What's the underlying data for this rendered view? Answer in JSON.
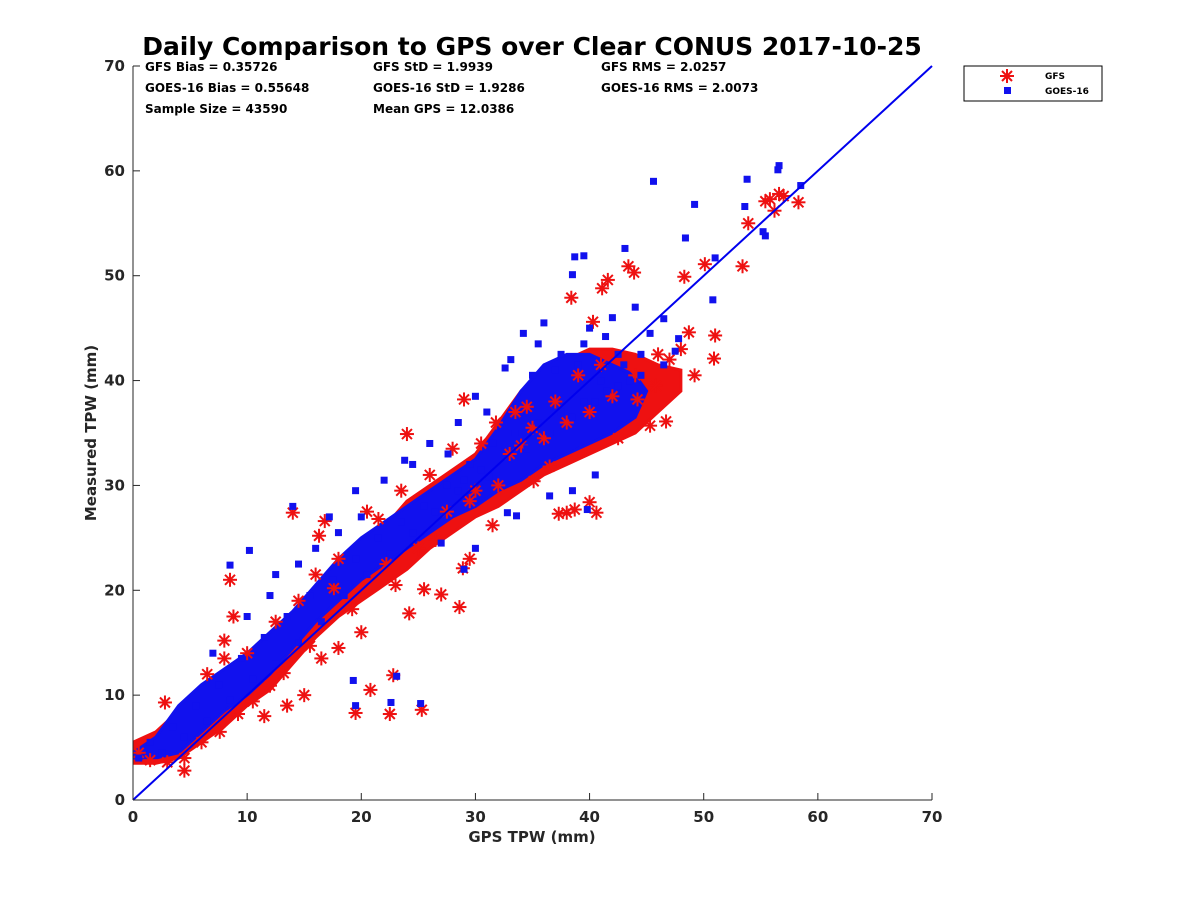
{
  "chart_data": {
    "type": "scatter",
    "title": "Daily Comparison to GPS over Clear CONUS 2017-10-25",
    "xlabel": "GPS TPW (mm)",
    "ylabel": "Measured TPW (mm)",
    "xlim": [
      0,
      70
    ],
    "ylim": [
      0,
      70
    ],
    "xticks": [
      "0",
      "10",
      "20",
      "30",
      "40",
      "50",
      "60",
      "70"
    ],
    "yticks": [
      "0",
      "10",
      "20",
      "30",
      "40",
      "50",
      "60",
      "70"
    ],
    "grid": false,
    "legend_position": "outside-top-right",
    "stats": [
      [
        "GFS Bias = 0.35726",
        "GFS StD = 1.9939",
        "GFS RMS = 2.0257"
      ],
      [
        "GOES-16 Bias = 0.55648",
        "GOES-16 StD = 1.9286",
        "GOES-16 RMS = 2.0073"
      ],
      [
        "Sample Size = 43590",
        "Mean GPS = 12.0386",
        ""
      ]
    ],
    "reference_line": {
      "name": "1:1",
      "x": [
        0,
        70
      ],
      "y": [
        0,
        70
      ],
      "color": "#0000ee"
    },
    "series": [
      {
        "name": "GFS",
        "marker": "asterisk",
        "color": "#ee1111",
        "points": [
          [
            2.8,
            9.3
          ],
          [
            4.5,
            2.8
          ],
          [
            8.0,
            15.2
          ],
          [
            8.5,
            21.0
          ],
          [
            8.8,
            17.5
          ],
          [
            14.0,
            27.4
          ],
          [
            16.8,
            26.6
          ],
          [
            16.3,
            25.2
          ],
          [
            19.5,
            8.3
          ],
          [
            22.5,
            8.2
          ],
          [
            22.8,
            11.9
          ],
          [
            25.3,
            8.6
          ],
          [
            20.8,
            10.5
          ],
          [
            24.0,
            34.9
          ],
          [
            24.2,
            17.8
          ],
          [
            27.0,
            19.6
          ],
          [
            28.6,
            18.4
          ],
          [
            29.0,
            38.2
          ],
          [
            29.5,
            23.0
          ],
          [
            28.9,
            22.1
          ],
          [
            34.5,
            37.5
          ],
          [
            37.3,
            27.3
          ],
          [
            38.0,
            27.4
          ],
          [
            38.7,
            27.7
          ],
          [
            40.0,
            28.4
          ],
          [
            40.6,
            27.4
          ],
          [
            38.4,
            47.9
          ],
          [
            40.3,
            45.6
          ],
          [
            41.1,
            48.8
          ],
          [
            41.6,
            49.6
          ],
          [
            43.4,
            50.9
          ],
          [
            43.9,
            50.3
          ],
          [
            48.3,
            49.9
          ],
          [
            48.7,
            44.6
          ],
          [
            49.2,
            40.5
          ],
          [
            50.1,
            51.1
          ],
          [
            51.0,
            44.3
          ],
          [
            50.9,
            42.1
          ],
          [
            53.4,
            50.9
          ],
          [
            53.9,
            55.0
          ],
          [
            55.4,
            57.1
          ],
          [
            55.8,
            57.3
          ],
          [
            56.2,
            56.2
          ],
          [
            56.6,
            57.8
          ],
          [
            57.0,
            57.6
          ],
          [
            58.3,
            57.0
          ],
          [
            45.3,
            35.7
          ],
          [
            46.7,
            36.1
          ],
          [
            42.5,
            34.5
          ],
          [
            44.2,
            38.2
          ],
          [
            45.8,
            39.5
          ],
          [
            47.0,
            42.0
          ],
          [
            33.0,
            33.0
          ],
          [
            35.1,
            30.4
          ],
          [
            36.5,
            31.8
          ],
          [
            31.5,
            26.2
          ],
          [
            30.0,
            29.5
          ],
          [
            26.5,
            24.8
          ],
          [
            25.5,
            20.1
          ],
          [
            22.2,
            22.5
          ],
          [
            21.5,
            26.8
          ],
          [
            19.2,
            18.2
          ],
          [
            17.6,
            20.2
          ],
          [
            15.5,
            14.7
          ],
          [
            13.2,
            12.1
          ],
          [
            12.0,
            10.9
          ],
          [
            10.5,
            9.4
          ],
          [
            9.2,
            8.2
          ],
          [
            7.6,
            6.5
          ],
          [
            6.0,
            5.5
          ],
          [
            4.5,
            4.0
          ],
          [
            3.0,
            3.6
          ],
          [
            1.5,
            3.8
          ],
          [
            0.5,
            4.5
          ],
          [
            11.5,
            8.0
          ],
          [
            13.5,
            9.0
          ],
          [
            15.0,
            10.0
          ],
          [
            16.5,
            13.5
          ],
          [
            18.0,
            14.5
          ],
          [
            20.0,
            16.0
          ],
          [
            23.0,
            20.5
          ],
          [
            25.0,
            24.0
          ],
          [
            27.5,
            27.5
          ],
          [
            29.5,
            28.5
          ],
          [
            32.0,
            30.0
          ],
          [
            34.0,
            33.8
          ],
          [
            36.0,
            34.5
          ],
          [
            38.0,
            36.0
          ],
          [
            40.0,
            37.0
          ],
          [
            42.0,
            38.5
          ],
          [
            44.0,
            40.5
          ],
          [
            46.0,
            42.5
          ],
          [
            48.0,
            43.0
          ],
          [
            39.0,
            40.5
          ],
          [
            41.0,
            41.5
          ],
          [
            37.0,
            38.0
          ],
          [
            35.0,
            35.5
          ],
          [
            33.5,
            37.0
          ],
          [
            6.5,
            12.0
          ],
          [
            8.0,
            13.5
          ],
          [
            10.0,
            14.0
          ],
          [
            12.5,
            17.0
          ],
          [
            14.5,
            19.0
          ],
          [
            16.0,
            21.5
          ],
          [
            18.0,
            23.0
          ],
          [
            20.5,
            27.5
          ],
          [
            23.5,
            29.5
          ],
          [
            26.0,
            31.0
          ],
          [
            28.0,
            33.5
          ],
          [
            30.5,
            34.0
          ],
          [
            31.8,
            36.0
          ]
        ]
      },
      {
        "name": "GOES-16",
        "marker": "square",
        "color": "#1111ee",
        "points": [
          [
            45.6,
            59.0
          ],
          [
            49.2,
            56.8
          ],
          [
            51.0,
            51.7
          ],
          [
            53.6,
            56.6
          ],
          [
            53.8,
            59.2
          ],
          [
            56.5,
            60.1
          ],
          [
            56.6,
            60.5
          ],
          [
            58.5,
            58.6
          ],
          [
            55.2,
            54.2
          ],
          [
            55.4,
            53.8
          ],
          [
            48.4,
            53.6
          ],
          [
            50.8,
            47.7
          ],
          [
            43.1,
            52.6
          ],
          [
            38.7,
            51.8
          ],
          [
            39.5,
            51.9
          ],
          [
            38.5,
            50.1
          ],
          [
            34.2,
            44.5
          ],
          [
            33.1,
            42.0
          ],
          [
            32.6,
            41.2
          ],
          [
            14.0,
            28.0
          ],
          [
            17.2,
            27.0
          ],
          [
            8.5,
            22.4
          ],
          [
            10.2,
            23.8
          ],
          [
            12.5,
            21.5
          ],
          [
            19.5,
            29.5
          ],
          [
            23.8,
            32.4
          ],
          [
            27.6,
            33.0
          ],
          [
            29.0,
            30.5
          ],
          [
            31.2,
            30.8
          ],
          [
            32.8,
            27.4
          ],
          [
            33.6,
            27.1
          ],
          [
            22.6,
            9.3
          ],
          [
            23.1,
            11.8
          ],
          [
            25.2,
            9.2
          ],
          [
            19.3,
            11.4
          ],
          [
            19.5,
            9.0
          ],
          [
            39.8,
            27.7
          ],
          [
            36.5,
            29.0
          ],
          [
            38.5,
            29.5
          ],
          [
            40.5,
            31.0
          ],
          [
            44.5,
            42.5
          ],
          [
            45.3,
            44.5
          ],
          [
            46.5,
            45.9
          ],
          [
            47.8,
            44.0
          ],
          [
            41.4,
            44.2
          ],
          [
            44.0,
            47.0
          ],
          [
            42.0,
            46.0
          ],
          [
            40.0,
            45.0
          ],
          [
            36.0,
            45.5
          ],
          [
            35.5,
            43.5
          ],
          [
            37.5,
            42.5
          ],
          [
            39.5,
            43.5
          ],
          [
            42.5,
            42.5
          ],
          [
            43.5,
            40.0
          ],
          [
            41.5,
            39.0
          ],
          [
            39.5,
            38.0
          ],
          [
            37.5,
            37.0
          ],
          [
            35.5,
            36.0
          ],
          [
            33.5,
            35.0
          ],
          [
            31.5,
            34.0
          ],
          [
            29.5,
            32.0
          ],
          [
            27.5,
            30.0
          ],
          [
            25.5,
            28.0
          ],
          [
            23.5,
            26.5
          ],
          [
            21.5,
            25.0
          ],
          [
            19.5,
            23.0
          ],
          [
            17.5,
            21.0
          ],
          [
            15.5,
            19.5
          ],
          [
            13.5,
            17.5
          ],
          [
            11.5,
            15.5
          ],
          [
            9.5,
            13.5
          ],
          [
            7.5,
            11.0
          ],
          [
            5.5,
            9.0
          ],
          [
            3.5,
            7.0
          ],
          [
            1.5,
            5.5
          ],
          [
            0.5,
            4.0
          ],
          [
            2.5,
            4.5
          ],
          [
            4.5,
            6.0
          ],
          [
            6.5,
            7.5
          ],
          [
            8.5,
            9.5
          ],
          [
            10.5,
            11.5
          ],
          [
            12.5,
            13.0
          ],
          [
            14.5,
            15.0
          ],
          [
            16.5,
            17.0
          ],
          [
            18.5,
            19.5
          ],
          [
            20.5,
            21.5
          ],
          [
            22.5,
            23.5
          ],
          [
            24.5,
            25.5
          ],
          [
            26.5,
            27.5
          ],
          [
            28.5,
            29.5
          ],
          [
            30.5,
            31.5
          ],
          [
            34.5,
            33.5
          ],
          [
            36.5,
            35.0
          ],
          [
            38.5,
            36.5
          ],
          [
            40.5,
            38.0
          ],
          [
            42.5,
            39.5
          ],
          [
            44.5,
            40.5
          ],
          [
            46.5,
            41.5
          ],
          [
            47.5,
            42.8
          ],
          [
            31.0,
            37.0
          ],
          [
            30.0,
            38.5
          ],
          [
            28.5,
            36.0
          ],
          [
            26.0,
            34.0
          ],
          [
            24.5,
            32.0
          ],
          [
            22.0,
            30.5
          ],
          [
            20.0,
            27.0
          ],
          [
            18.0,
            25.5
          ],
          [
            16.0,
            24.0
          ],
          [
            14.5,
            22.5
          ],
          [
            12.0,
            19.5
          ],
          [
            10.0,
            17.5
          ],
          [
            7.0,
            14.0
          ],
          [
            27.0,
            24.5
          ],
          [
            29.0,
            22.0
          ],
          [
            30.0,
            24.0
          ],
          [
            35.0,
            40.5
          ],
          [
            37.0,
            41.0
          ],
          [
            39.0,
            41.5
          ],
          [
            41.0,
            40.0
          ],
          [
            43.0,
            41.5
          ]
        ]
      }
    ]
  }
}
